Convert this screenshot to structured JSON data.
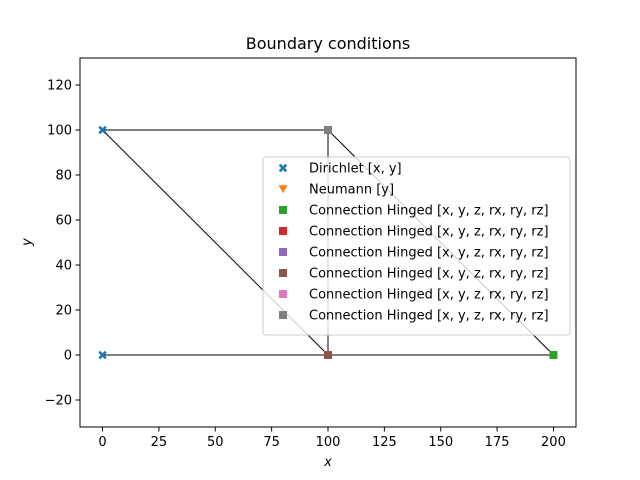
{
  "chart_data": {
    "type": "scatter",
    "title": "Boundary conditions",
    "xlabel": "x",
    "ylabel": "y",
    "xlim": [
      -10,
      210
    ],
    "ylim": [
      -32,
      132
    ],
    "xticks": [
      0,
      25,
      50,
      75,
      100,
      125,
      150,
      175,
      200
    ],
    "yticks": [
      -20,
      0,
      20,
      40,
      60,
      80,
      100,
      120
    ],
    "grid": false,
    "legend_position": "center-right",
    "structure_lines": [
      {
        "x": [
          0,
          100
        ],
        "y": [
          0,
          0
        ]
      },
      {
        "x": [
          100,
          200
        ],
        "y": [
          0,
          0
        ]
      },
      {
        "x": [
          0,
          100
        ],
        "y": [
          100,
          100
        ]
      },
      {
        "x": [
          0,
          100
        ],
        "y": [
          100,
          0
        ]
      },
      {
        "x": [
          100,
          100
        ],
        "y": [
          0,
          100
        ]
      },
      {
        "x": [
          100,
          200
        ],
        "y": [
          100,
          0
        ]
      }
    ],
    "line_color": "#000000",
    "series": [
      {
        "name": "Dirichlet  [x, y]",
        "marker": "x",
        "color": "#1f77b4",
        "points": [
          [
            0,
            100
          ],
          [
            0,
            0
          ]
        ]
      },
      {
        "name": "Neumann  [y]",
        "marker": "v",
        "color": "#ff7f0e",
        "points": []
      },
      {
        "name": "Connection Hinged [x, y, z, rx, ry, rz]",
        "marker": "s",
        "color": "#2ca02c",
        "points": [
          [
            200,
            0
          ]
        ]
      },
      {
        "name": "Connection Hinged [x, y, z, rx, ry, rz]",
        "marker": "s",
        "color": "#d62728",
        "points": [
          [
            100,
            0
          ]
        ]
      },
      {
        "name": "Connection Hinged [x, y, z, rx, ry, rz]",
        "marker": "s",
        "color": "#9467bd",
        "points": [
          [
            100,
            0
          ]
        ]
      },
      {
        "name": "Connection Hinged [x, y, z, rx, ry, rz]",
        "marker": "s",
        "color": "#8c564b",
        "points": [
          [
            100,
            0
          ]
        ]
      },
      {
        "name": "Connection Hinged [x, y, z, rx, ry, rz]",
        "marker": "s",
        "color": "#e377c2",
        "points": [
          [
            100,
            100
          ]
        ]
      },
      {
        "name": "Connection Hinged [x, y, z, rx, ry, rz]",
        "marker": "s",
        "color": "#7f7f7f",
        "points": [
          [
            100,
            100
          ]
        ]
      }
    ]
  }
}
